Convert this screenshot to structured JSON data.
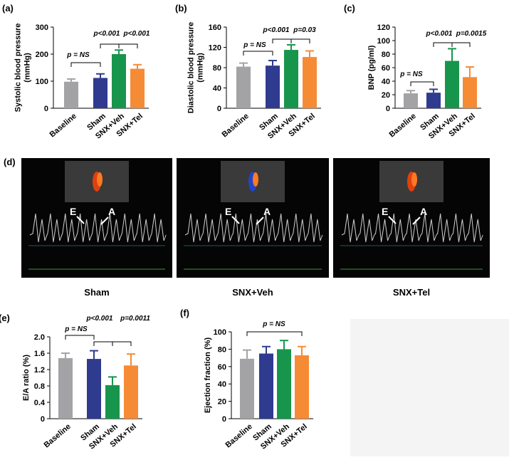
{
  "chart_data": [
    {
      "type": "bar",
      "panel_label": "(a)",
      "y_label": [
        "Systolic blood pressure",
        "(mmHg)"
      ],
      "categories": [
        "Baseline",
        "Sham",
        "SNX+Veh",
        "SNX+Tel"
      ],
      "values": [
        98,
        112,
        200,
        146
      ],
      "errors": [
        10,
        15,
        15,
        15
      ],
      "colors": [
        "#a3a3a6",
        "#2f3b8e",
        "#17954c",
        "#f68b36"
      ],
      "ylim": [
        0,
        300
      ],
      "yticks": [
        0,
        100,
        200,
        300
      ],
      "annotations": [
        "p = NS",
        "p<0.001",
        "p<0.001"
      ]
    },
    {
      "type": "bar",
      "panel_label": "(b)",
      "y_label": [
        "Diastolic blood pressure",
        "(mmHg)"
      ],
      "categories": [
        "Baseline",
        "Sham",
        "SNX+Veh",
        "SNX+Tel"
      ],
      "values": [
        82,
        84,
        115,
        101
      ],
      "errors": [
        7,
        10,
        10,
        12
      ],
      "colors": [
        "#a3a3a6",
        "#2f3b8e",
        "#17954c",
        "#f68b36"
      ],
      "ylim": [
        0,
        160
      ],
      "yticks": [
        0,
        40,
        80,
        120,
        160
      ],
      "annotations": [
        "p = NS",
        "p<0.001",
        "p=0.03"
      ]
    },
    {
      "type": "bar",
      "panel_label": "(c)",
      "y_label": [
        "BNP (pg/ml)"
      ],
      "categories": [
        "Baseline",
        "Sham",
        "SNX+Veh",
        "SNX+Tel"
      ],
      "values": [
        22,
        23,
        70,
        46
      ],
      "errors": [
        4,
        5,
        18,
        15
      ],
      "colors": [
        "#a3a3a6",
        "#2f3b8e",
        "#17954c",
        "#f68b36"
      ],
      "ylim": [
        0,
        120
      ],
      "yticks": [
        0,
        20,
        40,
        60,
        80,
        100,
        120
      ],
      "annotations": [
        "p = NS",
        "p<0.001",
        "p=0.0015"
      ]
    },
    {
      "type": "bar",
      "panel_label": "(e)",
      "y_label": [
        "E/A ratio (%)"
      ],
      "categories": [
        "Baseline",
        "Sham",
        "SNX+Veh",
        "SNX+Tel"
      ],
      "values": [
        1.48,
        1.46,
        0.82,
        1.3
      ],
      "errors": [
        0.12,
        0.2,
        0.2,
        0.28
      ],
      "colors": [
        "#a3a3a6",
        "#2f3b8e",
        "#17954c",
        "#f68b36"
      ],
      "ylim": [
        0,
        2
      ],
      "yticks": [
        0,
        0.4,
        0.8,
        1.2,
        1.6,
        {
          "value": 2,
          "label": "2.0"
        }
      ],
      "annotations": [
        "p = NS",
        "p<0.001",
        "p=0.0011"
      ]
    },
    {
      "type": "bar",
      "panel_label": "(f)",
      "y_label": [
        "Ejection fraction (%)"
      ],
      "categories": [
        "Baseline",
        "Sham",
        "SNX+Veh",
        "SNX+Tel"
      ],
      "values": [
        69,
        75,
        80,
        73
      ],
      "errors": [
        10,
        8,
        10,
        10
      ],
      "colors": [
        "#a3a3a6",
        "#2f3b8e",
        "#17954c",
        "#f68b36"
      ],
      "ylim": [
        0,
        100
      ],
      "yticks": [
        0,
        20,
        40,
        60,
        80,
        100
      ],
      "annotations": [
        "p = NS"
      ]
    }
  ],
  "echo_panel": {
    "panel_label": "(d)",
    "images": [
      {
        "caption": "Sham",
        "peaks": [
          "E",
          "A"
        ]
      },
      {
        "caption": "SNX+Veh",
        "peaks": [
          "E",
          "A"
        ]
      },
      {
        "caption": "SNX+Tel",
        "peaks": [
          "E",
          "A"
        ]
      }
    ]
  }
}
